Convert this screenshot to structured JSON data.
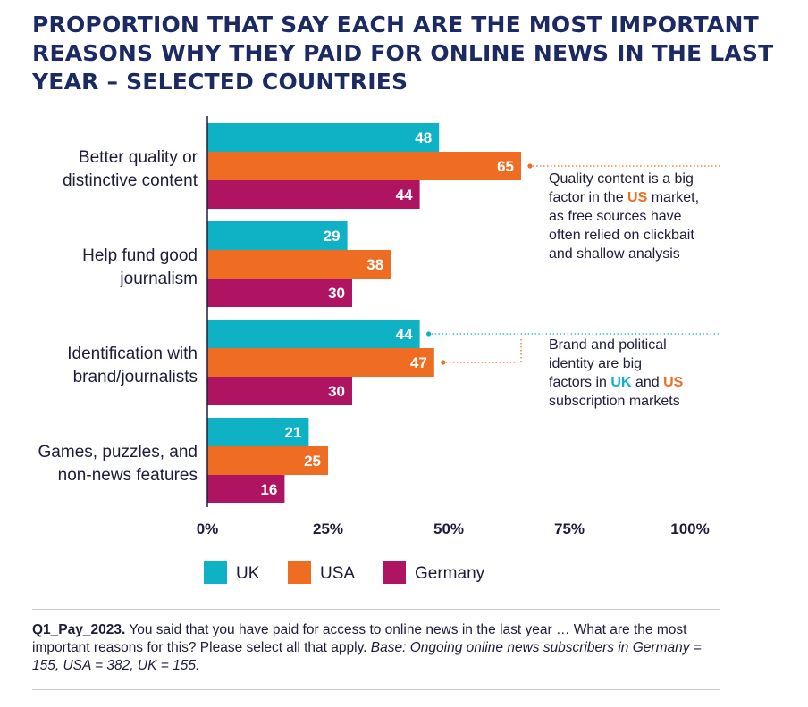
{
  "title_lines": [
    "PROPORTION THAT SAY EACH ARE THE MOST IMPORTANT",
    "REASONS WHY THEY PAID FOR ONLINE NEWS IN THE LAST",
    "YEAR – SELECTED COUNTRIES"
  ],
  "colors": {
    "UK": "#0fb2c4",
    "USA": "#ee6d22",
    "Germany": "#ae1461"
  },
  "chart_data": {
    "type": "bar",
    "orientation": "horizontal",
    "categories": [
      [
        "Better quality or",
        "distinctive content"
      ],
      [
        "Help fund good",
        "journalism"
      ],
      [
        "Identification with",
        "brand/journalists"
      ],
      [
        "Games, puzzles, and",
        "non-news features"
      ]
    ],
    "series": [
      {
        "name": "UK",
        "values": [
          48,
          29,
          44,
          21
        ]
      },
      {
        "name": "USA",
        "values": [
          65,
          38,
          47,
          25
        ]
      },
      {
        "name": "Germany",
        "values": [
          44,
          30,
          30,
          16
        ]
      }
    ],
    "xlim": [
      0,
      100
    ],
    "x_ticks": [
      "0%",
      "25%",
      "50%",
      "75%",
      "100%"
    ],
    "grid": false,
    "legend_position": "bottom",
    "annotations": [
      {
        "lines": [
          [
            {
              "t": "Quality content is a big"
            }
          ],
          [
            {
              "t": "factor in the "
            },
            {
              "t": "US",
              "c": "USA"
            },
            {
              "t": " market,"
            }
          ],
          [
            {
              "t": "as free sources have"
            }
          ],
          [
            {
              "t": "often relied on clickbait"
            }
          ],
          [
            {
              "t": "and shallow analysis"
            }
          ]
        ]
      },
      {
        "lines": [
          [
            {
              "t": "Brand and political"
            }
          ],
          [
            {
              "t": "identity are big"
            }
          ],
          [
            {
              "t": "factors in "
            },
            {
              "t": "UK",
              "c": "UK"
            },
            {
              "t": " and "
            },
            {
              "t": "US",
              "c": "USA"
            }
          ],
          [
            {
              "t": "subscription markets"
            }
          ]
        ]
      }
    ]
  },
  "footnote": {
    "code": "Q1_Pay_2023.",
    "text": " You said that you have paid for access to online news in the last year … What are the most important reasons for this? Please select all that apply. ",
    "base": "Base: Ongoing online news subscribers in Germany = 155, USA = 382, UK = 155."
  }
}
